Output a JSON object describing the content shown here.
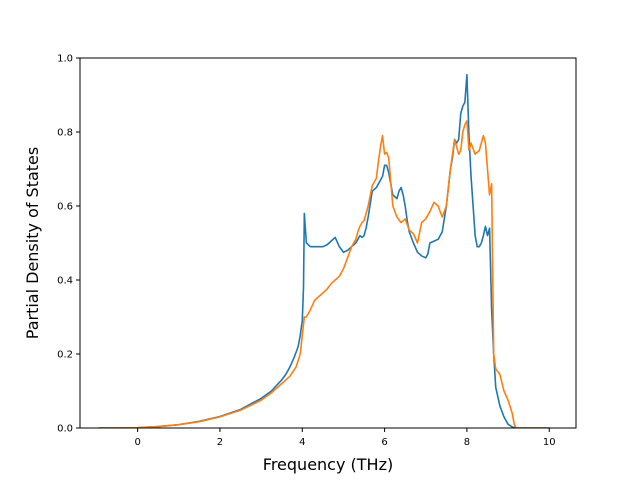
{
  "chart_data": {
    "type": "line",
    "title": "",
    "xlabel": "Frequency (THz)",
    "ylabel": "Partial Density of States",
    "xlim": [
      -1.4,
      10.65
    ],
    "ylim": [
      0.0,
      1.0
    ],
    "xticks": [
      0,
      2,
      4,
      6,
      8,
      10
    ],
    "yticks": [
      0.0,
      0.2,
      0.4,
      0.6,
      0.8,
      1.0
    ],
    "xtick_labels": [
      "0",
      "2",
      "4",
      "6",
      "8",
      "10"
    ],
    "ytick_labels": [
      "0.0",
      "0.2",
      "0.4",
      "0.6",
      "0.8",
      "1.0"
    ],
    "grid": false,
    "legend": "none",
    "series": [
      {
        "color": "#1f77b4",
        "x": [
          -0.95,
          -0.5,
          0,
          0.5,
          1.0,
          1.5,
          2.0,
          2.5,
          3.0,
          3.25,
          3.5,
          3.6,
          3.7,
          3.8,
          3.9,
          3.95,
          4.0,
          4.03,
          4.05,
          4.1,
          4.2,
          4.3,
          4.4,
          4.5,
          4.6,
          4.7,
          4.8,
          4.9,
          5.0,
          5.1,
          5.2,
          5.3,
          5.35,
          5.4,
          5.45,
          5.5,
          5.55,
          5.6,
          5.7,
          5.8,
          5.85,
          5.9,
          5.95,
          6.0,
          6.05,
          6.1,
          6.15,
          6.2,
          6.25,
          6.3,
          6.35,
          6.4,
          6.45,
          6.5,
          6.55,
          6.6,
          6.7,
          6.8,
          6.9,
          7.0,
          7.05,
          7.1,
          7.2,
          7.3,
          7.4,
          7.5,
          7.6,
          7.65,
          7.7,
          7.75,
          7.8,
          7.85,
          7.9,
          7.95,
          8.0,
          8.05,
          8.1,
          8.15,
          8.2,
          8.25,
          8.3,
          8.35,
          8.4,
          8.45,
          8.5,
          8.55,
          8.6,
          8.65,
          8.7,
          8.8,
          8.9,
          9.0,
          9.1,
          9.2,
          9.5,
          10.0
        ],
        "y": [
          0.0,
          0.0,
          0.001,
          0.004,
          0.009,
          0.018,
          0.031,
          0.05,
          0.08,
          0.1,
          0.13,
          0.145,
          0.165,
          0.19,
          0.22,
          0.25,
          0.29,
          0.38,
          0.58,
          0.5,
          0.49,
          0.49,
          0.49,
          0.49,
          0.495,
          0.505,
          0.515,
          0.49,
          0.475,
          0.48,
          0.49,
          0.5,
          0.51,
          0.52,
          0.515,
          0.52,
          0.54,
          0.57,
          0.64,
          0.65,
          0.66,
          0.67,
          0.68,
          0.71,
          0.71,
          0.69,
          0.66,
          0.63,
          0.625,
          0.62,
          0.64,
          0.65,
          0.63,
          0.6,
          0.56,
          0.53,
          0.5,
          0.475,
          0.465,
          0.46,
          0.47,
          0.5,
          0.505,
          0.51,
          0.53,
          0.6,
          0.7,
          0.73,
          0.78,
          0.77,
          0.78,
          0.85,
          0.87,
          0.88,
          0.955,
          0.79,
          0.68,
          0.6,
          0.52,
          0.49,
          0.49,
          0.5,
          0.52,
          0.545,
          0.52,
          0.54,
          0.32,
          0.2,
          0.11,
          0.06,
          0.03,
          0.01,
          0.003,
          0.0,
          0.0,
          0.0
        ]
      },
      {
        "color": "#ff7f0e",
        "x": [
          -0.95,
          -0.5,
          0,
          0.5,
          1.0,
          1.5,
          2.0,
          2.5,
          3.0,
          3.25,
          3.5,
          3.7,
          3.85,
          3.95,
          4.0,
          4.05,
          4.1,
          4.2,
          4.3,
          4.4,
          4.5,
          4.6,
          4.7,
          4.8,
          4.9,
          5.0,
          5.1,
          5.2,
          5.3,
          5.35,
          5.4,
          5.45,
          5.5,
          5.6,
          5.7,
          5.8,
          5.85,
          5.9,
          5.95,
          6.0,
          6.05,
          6.1,
          6.2,
          6.3,
          6.4,
          6.5,
          6.6,
          6.7,
          6.8,
          6.9,
          7.0,
          7.1,
          7.2,
          7.3,
          7.4,
          7.5,
          7.6,
          7.7,
          7.75,
          7.8,
          7.85,
          7.9,
          7.95,
          8.0,
          8.05,
          8.1,
          8.2,
          8.3,
          8.4,
          8.45,
          8.5,
          8.55,
          8.6,
          8.65,
          8.7,
          8.8,
          8.9,
          9.0,
          9.1,
          9.15,
          9.2,
          9.5,
          10.0
        ],
        "y": [
          0.0,
          0.0,
          0.001,
          0.004,
          0.009,
          0.017,
          0.03,
          0.048,
          0.075,
          0.095,
          0.12,
          0.14,
          0.165,
          0.2,
          0.25,
          0.3,
          0.3,
          0.32,
          0.345,
          0.355,
          0.365,
          0.375,
          0.39,
          0.4,
          0.41,
          0.43,
          0.46,
          0.49,
          0.51,
          0.53,
          0.545,
          0.555,
          0.56,
          0.6,
          0.655,
          0.675,
          0.72,
          0.76,
          0.79,
          0.74,
          0.745,
          0.73,
          0.6,
          0.57,
          0.555,
          0.565,
          0.535,
          0.525,
          0.5,
          0.555,
          0.565,
          0.585,
          0.61,
          0.6,
          0.57,
          0.6,
          0.7,
          0.78,
          0.76,
          0.74,
          0.75,
          0.8,
          0.82,
          0.83,
          0.75,
          0.77,
          0.74,
          0.75,
          0.79,
          0.77,
          0.7,
          0.63,
          0.66,
          0.2,
          0.16,
          0.145,
          0.1,
          0.075,
          0.04,
          0.01,
          0.0,
          0.0,
          0.0
        ]
      }
    ]
  }
}
